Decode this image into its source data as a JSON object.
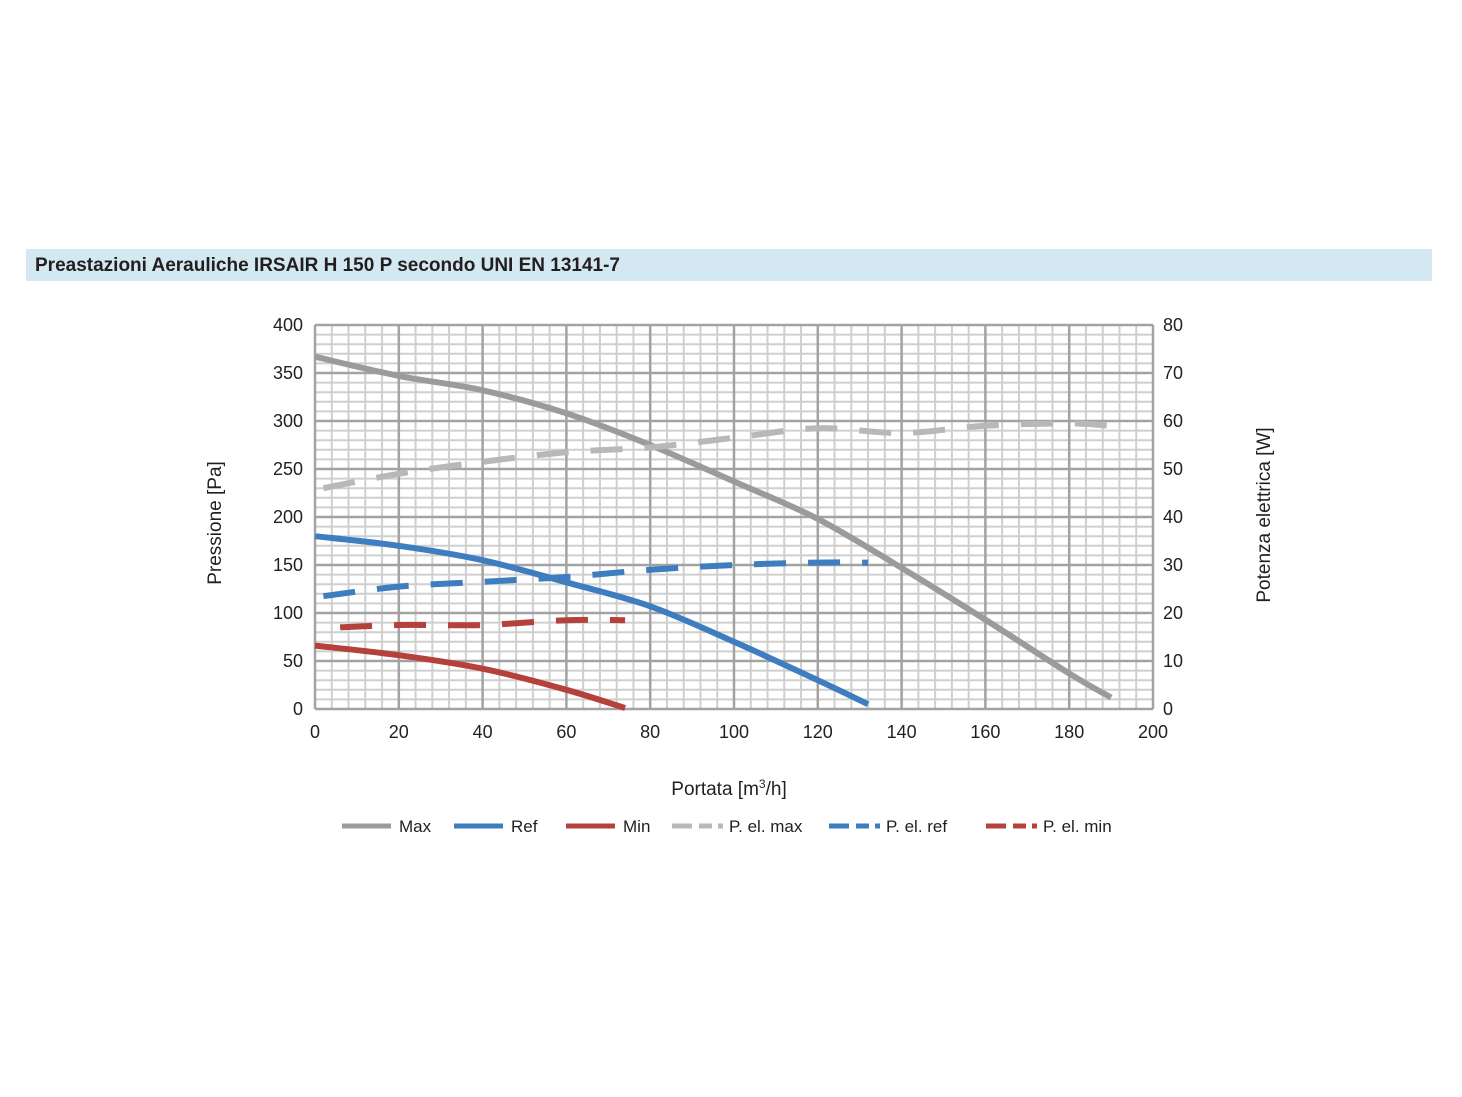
{
  "title": "Preastazioni Aerauliche IRSAIR H 150 P secondo UNI EN 13141-7",
  "chart_data": {
    "type": "line",
    "title": "Preastazioni Aerauliche IRSAIR H 150 P secondo UNI EN 13141-7",
    "xlabel_main": "Portata [m",
    "xlabel_sup": "3",
    "xlabel_tail": "/h]",
    "ylabel": "Pressione [Pa]",
    "y2label": "Potenza elettrica [W]",
    "xlim": [
      0,
      200
    ],
    "ylim": [
      0,
      400
    ],
    "y2lim": [
      0,
      80
    ],
    "x_ticks": [
      "0",
      "20",
      "40",
      "60",
      "80",
      "100",
      "120",
      "140",
      "160",
      "180",
      "200"
    ],
    "y_ticks": [
      "0",
      "50",
      "100",
      "150",
      "200",
      "250",
      "300",
      "350",
      "400"
    ],
    "y2_ticks": [
      "0",
      "10",
      "20",
      "30",
      "40",
      "50",
      "60",
      "70",
      "80"
    ],
    "grid": true,
    "legend_position": "bottom",
    "series": [
      {
        "name": "Max",
        "axis": "left",
        "style": "solid",
        "color": "#9b9b9b",
        "x": [
          0,
          20,
          40,
          60,
          80,
          100,
          120,
          140,
          160,
          180,
          190
        ],
        "y": [
          367,
          347,
          332,
          308,
          275,
          237,
          198,
          147,
          93,
          37,
          12
        ]
      },
      {
        "name": "Ref",
        "axis": "left",
        "style": "solid",
        "color": "#3e7dc0",
        "x": [
          0,
          20,
          40,
          60,
          80,
          100,
          120,
          132
        ],
        "y": [
          180,
          170,
          155,
          132,
          107,
          70,
          30,
          5
        ]
      },
      {
        "name": "Min",
        "axis": "left",
        "style": "solid",
        "color": "#b5413d",
        "x": [
          0,
          20,
          40,
          60,
          74
        ],
        "y": [
          66,
          56,
          42,
          20,
          1
        ]
      },
      {
        "name": "P. el. max",
        "axis": "right",
        "style": "dashed",
        "color": "#b8b8b8",
        "x": [
          2,
          20,
          40,
          60,
          80,
          100,
          120,
          140,
          160,
          180,
          190
        ],
        "y": [
          46,
          49,
          51.5,
          53.5,
          54.5,
          56.5,
          58.5,
          57.5,
          59,
          59.5,
          59
        ]
      },
      {
        "name": "P. el. ref",
        "axis": "right",
        "style": "dashed",
        "color": "#3e7dc0",
        "x": [
          2,
          20,
          40,
          60,
          80,
          100,
          120,
          132
        ],
        "y": [
          23.5,
          25.5,
          26.5,
          27.5,
          29,
          30,
          30.5,
          30.5
        ]
      },
      {
        "name": "P. el. min",
        "axis": "right",
        "style": "dashed",
        "color": "#b5413d",
        "x": [
          6,
          20,
          40,
          60,
          74
        ],
        "y": [
          17,
          17.5,
          17.5,
          18.5,
          18.5
        ]
      }
    ]
  }
}
